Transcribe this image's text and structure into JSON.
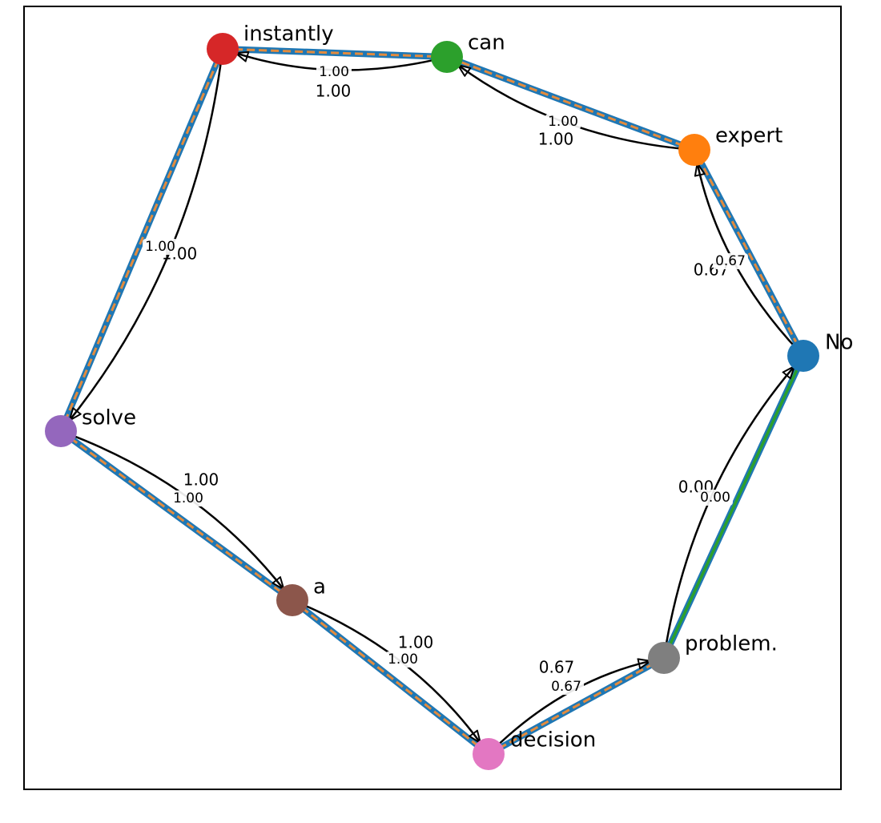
{
  "colors": {
    "background": "#ffffff",
    "frame": "#000000",
    "edge_blue": "#1f77b4",
    "edge_orange_dash": "#e38b3d",
    "edge_green": "#2ca02c",
    "arrow": "#000000"
  },
  "nodes": [
    {
      "id": "No",
      "label": "No",
      "color": "#1f77b4"
    },
    {
      "id": "expert",
      "label": "expert",
      "color": "#ff7f0e"
    },
    {
      "id": "can",
      "label": "can",
      "color": "#2ca02c"
    },
    {
      "id": "instantly",
      "label": "instantly",
      "color": "#d62728"
    },
    {
      "id": "solve",
      "label": "solve",
      "color": "#9467bd"
    },
    {
      "id": "a",
      "label": "a",
      "color": "#8c564b"
    },
    {
      "id": "decision",
      "label": "decision",
      "color": "#e377c2"
    },
    {
      "id": "problem",
      "label": "problem.",
      "color": "#7f7f7f"
    }
  ],
  "edges": [
    {
      "from": "No",
      "to": "expert",
      "weight_big": "0.67",
      "weight_small": "0.67"
    },
    {
      "from": "expert",
      "to": "can",
      "weight_big": "1.00",
      "weight_small": "1.00"
    },
    {
      "from": "can",
      "to": "instantly",
      "weight_big": "1.00",
      "weight_small": "1.00"
    },
    {
      "from": "instantly",
      "to": "solve",
      "weight_big": "1.00",
      "weight_small": "1.00"
    },
    {
      "from": "solve",
      "to": "a",
      "weight_big": "1.00",
      "weight_small": "1.00"
    },
    {
      "from": "a",
      "to": "decision",
      "weight_big": "1.00",
      "weight_small": "1.00"
    },
    {
      "from": "decision",
      "to": "problem",
      "weight_big": "0.67",
      "weight_small": "0.67"
    },
    {
      "from": "problem",
      "to": "No",
      "weight_big": "0.00",
      "weight_small": "0.00"
    }
  ]
}
